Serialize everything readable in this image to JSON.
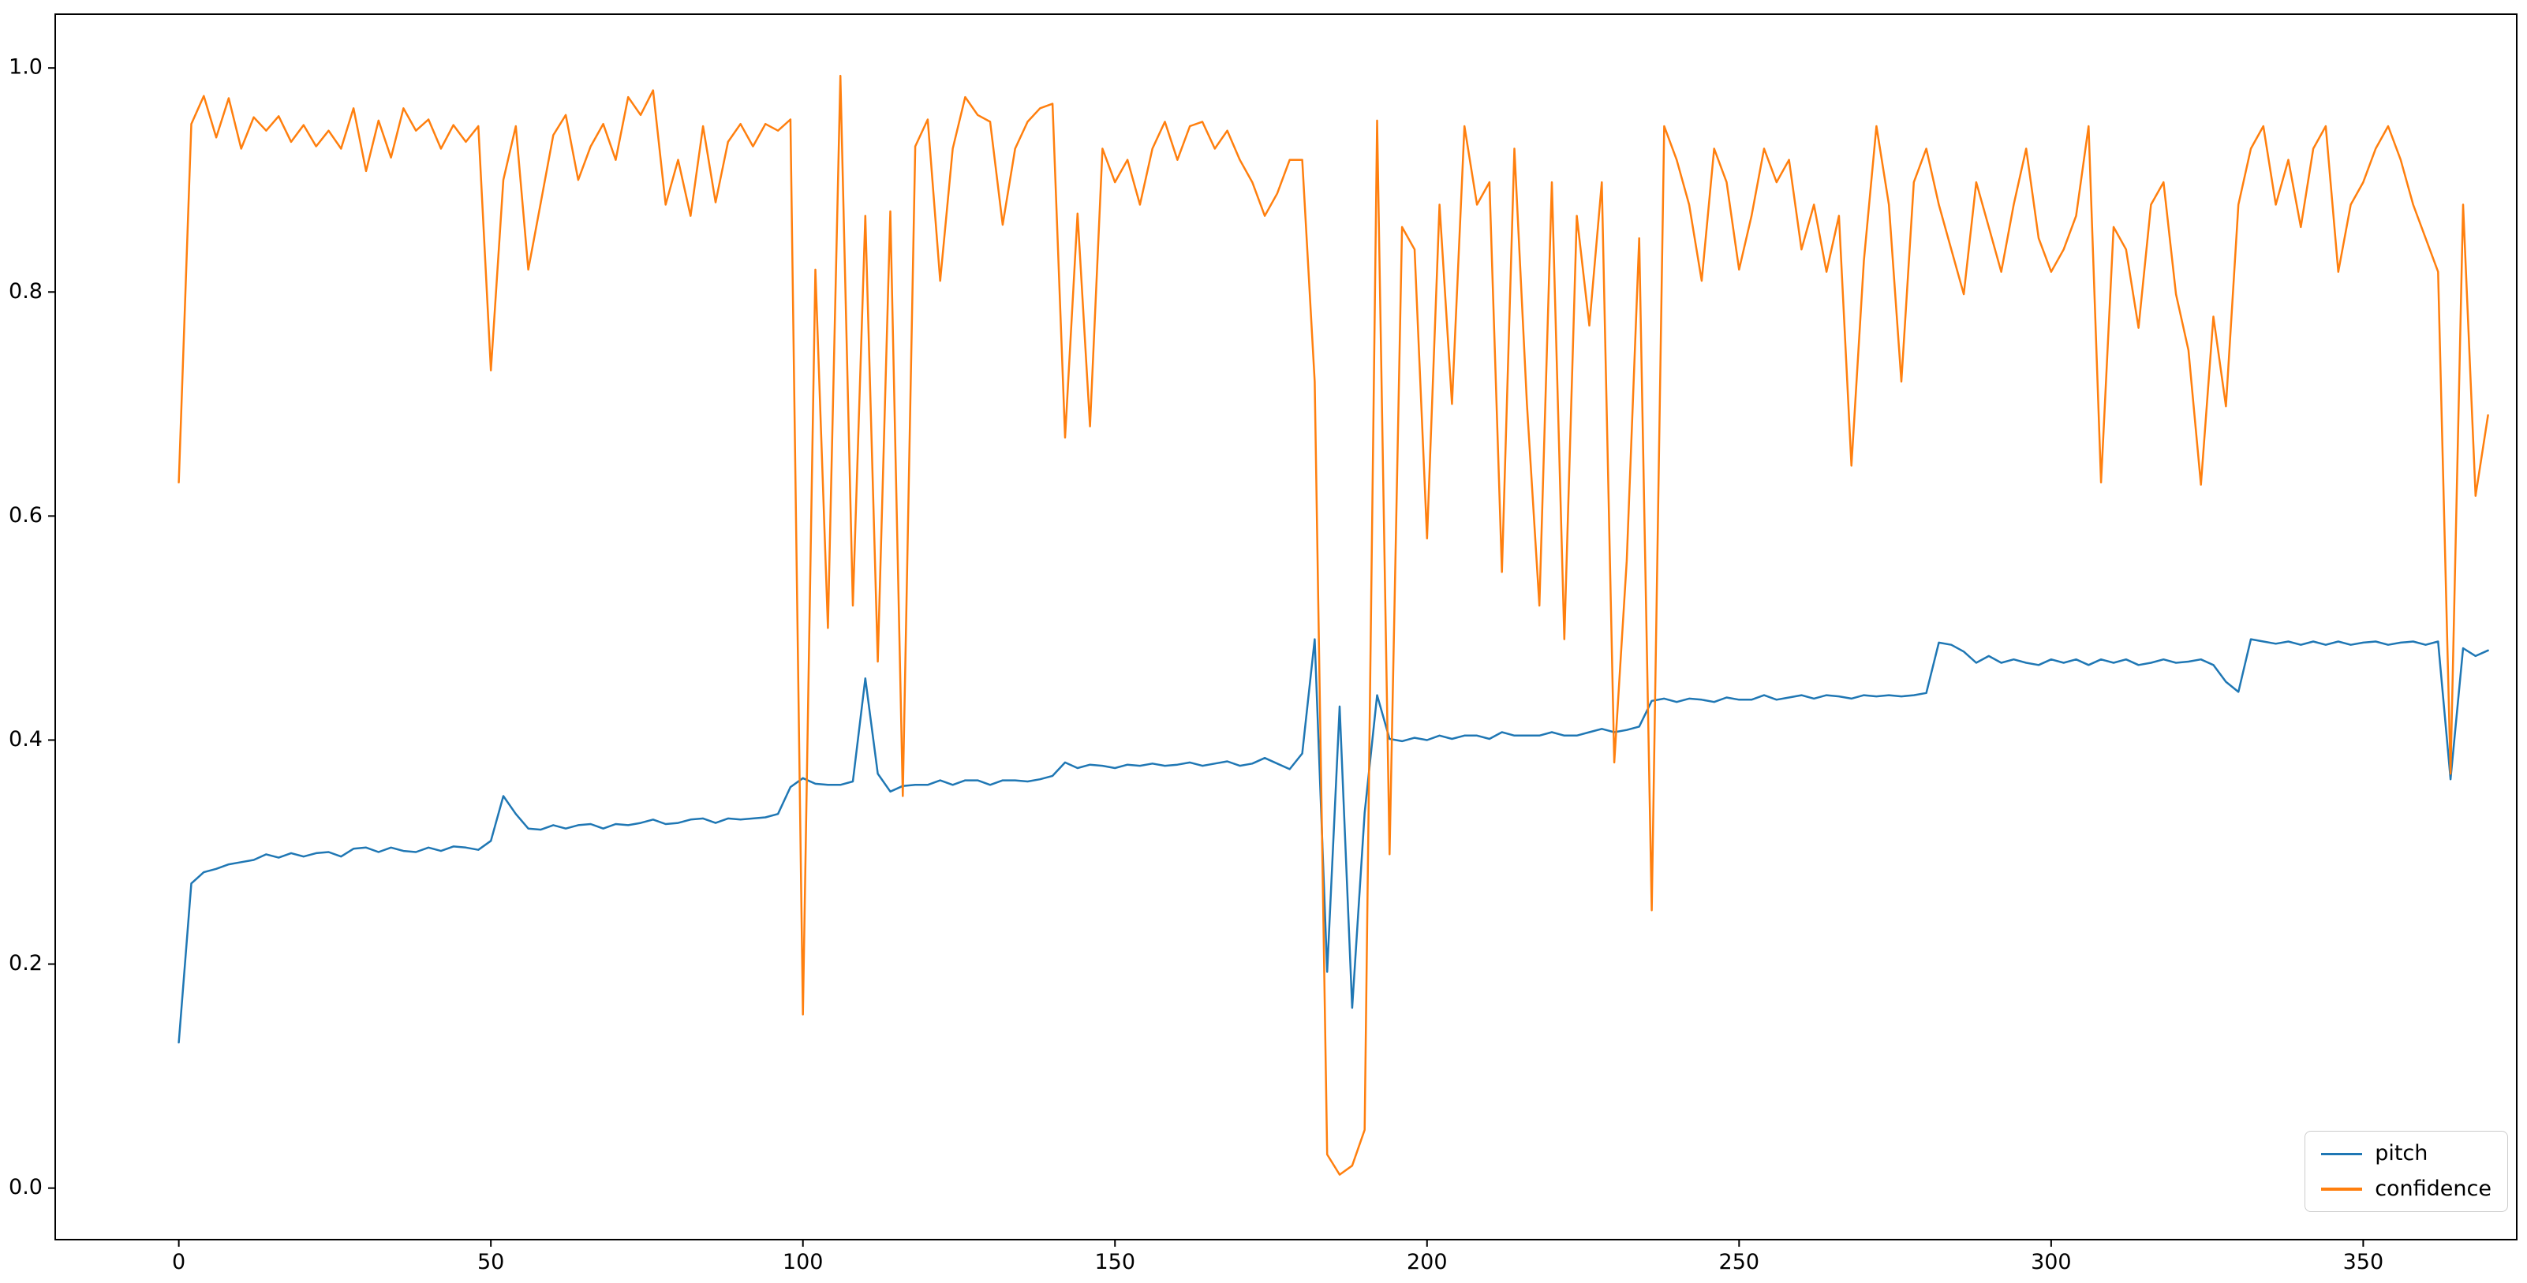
{
  "chart_data": {
    "type": "line",
    "title": "",
    "xlabel": "",
    "ylabel": "",
    "grid": false,
    "legend_position": "lower right",
    "xlim": [
      -19.8,
      374.6
    ],
    "ylim": [
      -0.046,
      1.048
    ],
    "xticks": [
      0,
      50,
      100,
      150,
      200,
      250,
      300,
      350
    ],
    "yticks": [
      0.0,
      0.2,
      0.4,
      0.6,
      0.8,
      1.0
    ],
    "ytick_labels": [
      "0.0",
      "0.2",
      "0.4",
      "0.6",
      "0.8",
      "1.0"
    ],
    "x": [
      0,
      2,
      4,
      6,
      8,
      10,
      12,
      14,
      16,
      18,
      20,
      22,
      24,
      26,
      28,
      30,
      32,
      34,
      36,
      38,
      40,
      42,
      44,
      46,
      48,
      50,
      52,
      54,
      56,
      58,
      60,
      62,
      64,
      66,
      68,
      70,
      72,
      74,
      76,
      78,
      80,
      82,
      84,
      86,
      88,
      90,
      92,
      94,
      96,
      98,
      100,
      102,
      104,
      106,
      108,
      110,
      112,
      114,
      116,
      118,
      120,
      122,
      124,
      126,
      128,
      130,
      132,
      134,
      136,
      138,
      140,
      142,
      144,
      146,
      148,
      150,
      152,
      154,
      156,
      158,
      160,
      162,
      164,
      166,
      168,
      170,
      172,
      174,
      176,
      178,
      180,
      182,
      184,
      186,
      188,
      190,
      192,
      194,
      196,
      198,
      200,
      202,
      204,
      206,
      208,
      210,
      212,
      214,
      216,
      218,
      220,
      222,
      224,
      226,
      228,
      230,
      232,
      234,
      236,
      238,
      240,
      242,
      244,
      246,
      248,
      250,
      252,
      254,
      256,
      258,
      260,
      262,
      264,
      266,
      268,
      270,
      272,
      274,
      276,
      278,
      280,
      282,
      284,
      286,
      288,
      290,
      292,
      294,
      296,
      298,
      300,
      302,
      304,
      306,
      308,
      310,
      312,
      314,
      316,
      318,
      320,
      322,
      324,
      326,
      328,
      330,
      332,
      334,
      336,
      338,
      340,
      342,
      344,
      346,
      348,
      350,
      352,
      354,
      356,
      358,
      360,
      362,
      364,
      366,
      368,
      370
    ],
    "series": [
      {
        "name": "pitch",
        "color": "#1f77b4",
        "values": [
          0.13,
          0.272,
          0.282,
          0.285,
          0.289,
          0.291,
          0.293,
          0.298,
          0.295,
          0.299,
          0.296,
          0.299,
          0.3,
          0.296,
          0.303,
          0.304,
          0.3,
          0.304,
          0.301,
          0.3,
          0.304,
          0.301,
          0.305,
          0.304,
          0.302,
          0.31,
          0.35,
          0.334,
          0.321,
          0.32,
          0.324,
          0.321,
          0.324,
          0.325,
          0.321,
          0.325,
          0.324,
          0.326,
          0.329,
          0.325,
          0.326,
          0.329,
          0.33,
          0.326,
          0.33,
          0.329,
          0.33,
          0.331,
          0.334,
          0.358,
          0.366,
          0.361,
          0.36,
          0.36,
          0.363,
          0.455,
          0.37,
          0.354,
          0.359,
          0.36,
          0.36,
          0.364,
          0.36,
          0.364,
          0.364,
          0.36,
          0.364,
          0.364,
          0.363,
          0.365,
          0.368,
          0.38,
          0.375,
          0.378,
          0.377,
          0.375,
          0.378,
          0.377,
          0.379,
          0.377,
          0.378,
          0.38,
          0.377,
          0.379,
          0.381,
          0.377,
          0.379,
          0.384,
          0.379,
          0.374,
          0.388,
          0.49,
          0.193,
          0.43,
          0.161,
          0.335,
          0.44,
          0.401,
          0.399,
          0.402,
          0.4,
          0.404,
          0.401,
          0.404,
          0.404,
          0.401,
          0.407,
          0.404,
          0.404,
          0.404,
          0.407,
          0.404,
          0.404,
          0.407,
          0.41,
          0.407,
          0.409,
          0.412,
          0.435,
          0.437,
          0.434,
          0.437,
          0.436,
          0.434,
          0.438,
          0.436,
          0.436,
          0.44,
          0.436,
          0.438,
          0.44,
          0.437,
          0.44,
          0.439,
          0.437,
          0.44,
          0.439,
          0.44,
          0.439,
          0.44,
          0.442,
          0.487,
          0.485,
          0.479,
          0.469,
          0.475,
          0.469,
          0.472,
          0.469,
          0.467,
          0.472,
          0.469,
          0.472,
          0.467,
          0.472,
          0.469,
          0.472,
          0.467,
          0.469,
          0.472,
          0.469,
          0.47,
          0.472,
          0.467,
          0.452,
          0.443,
          0.49,
          0.488,
          0.486,
          0.488,
          0.485,
          0.488,
          0.485,
          0.488,
          0.485,
          0.487,
          0.488,
          0.485,
          0.487,
          0.488,
          0.485,
          0.488,
          0.365,
          0.482,
          0.475,
          0.48
        ]
      },
      {
        "name": "confidence",
        "color": "#ff7f0e",
        "values": [
          0.63,
          0.95,
          0.975,
          0.938,
          0.973,
          0.928,
          0.956,
          0.944,
          0.957,
          0.934,
          0.949,
          0.93,
          0.944,
          0.928,
          0.964,
          0.908,
          0.953,
          0.92,
          0.964,
          0.944,
          0.954,
          0.928,
          0.949,
          0.934,
          0.948,
          0.73,
          0.9,
          0.948,
          0.82,
          0.88,
          0.94,
          0.958,
          0.9,
          0.93,
          0.95,
          0.918,
          0.974,
          0.958,
          0.98,
          0.878,
          0.918,
          0.868,
          0.948,
          0.88,
          0.934,
          0.95,
          0.93,
          0.95,
          0.944,
          0.954,
          0.155,
          0.82,
          0.5,
          0.993,
          0.52,
          0.868,
          0.47,
          0.872,
          0.35,
          0.93,
          0.954,
          0.81,
          0.928,
          0.974,
          0.958,
          0.952,
          0.86,
          0.928,
          0.952,
          0.964,
          0.968,
          0.67,
          0.87,
          0.68,
          0.928,
          0.898,
          0.918,
          0.878,
          0.928,
          0.952,
          0.918,
          0.948,
          0.952,
          0.928,
          0.944,
          0.918,
          0.898,
          0.868,
          0.888,
          0.918,
          0.918,
          0.72,
          0.03,
          0.012,
          0.02,
          0.052,
          0.953,
          0.298,
          0.858,
          0.838,
          0.58,
          0.878,
          0.7,
          0.948,
          0.878,
          0.898,
          0.55,
          0.928,
          0.7,
          0.52,
          0.898,
          0.49,
          0.868,
          0.77,
          0.898,
          0.38,
          0.56,
          0.848,
          0.248,
          0.948,
          0.918,
          0.878,
          0.81,
          0.928,
          0.898,
          0.82,
          0.868,
          0.928,
          0.898,
          0.918,
          0.838,
          0.878,
          0.818,
          0.868,
          0.645,
          0.828,
          0.948,
          0.878,
          0.72,
          0.898,
          0.928,
          0.878,
          0.838,
          0.798,
          0.898,
          0.858,
          0.818,
          0.878,
          0.928,
          0.848,
          0.818,
          0.838,
          0.868,
          0.948,
          0.63,
          0.858,
          0.838,
          0.768,
          0.878,
          0.898,
          0.798,
          0.748,
          0.628,
          0.778,
          0.698,
          0.878,
          0.928,
          0.948,
          0.878,
          0.918,
          0.858,
          0.928,
          0.948,
          0.818,
          0.878,
          0.898,
          0.928,
          0.948,
          0.918,
          0.878,
          0.848,
          0.818,
          0.37,
          0.878,
          0.618,
          0.69
        ]
      }
    ]
  },
  "colors": {
    "background": "#ffffff",
    "spine": "#000000",
    "tick_label": "#000000",
    "legend_border": "#cccccc",
    "pitch_line": "#1f77b4",
    "confidence_line": "#ff7f0e"
  }
}
